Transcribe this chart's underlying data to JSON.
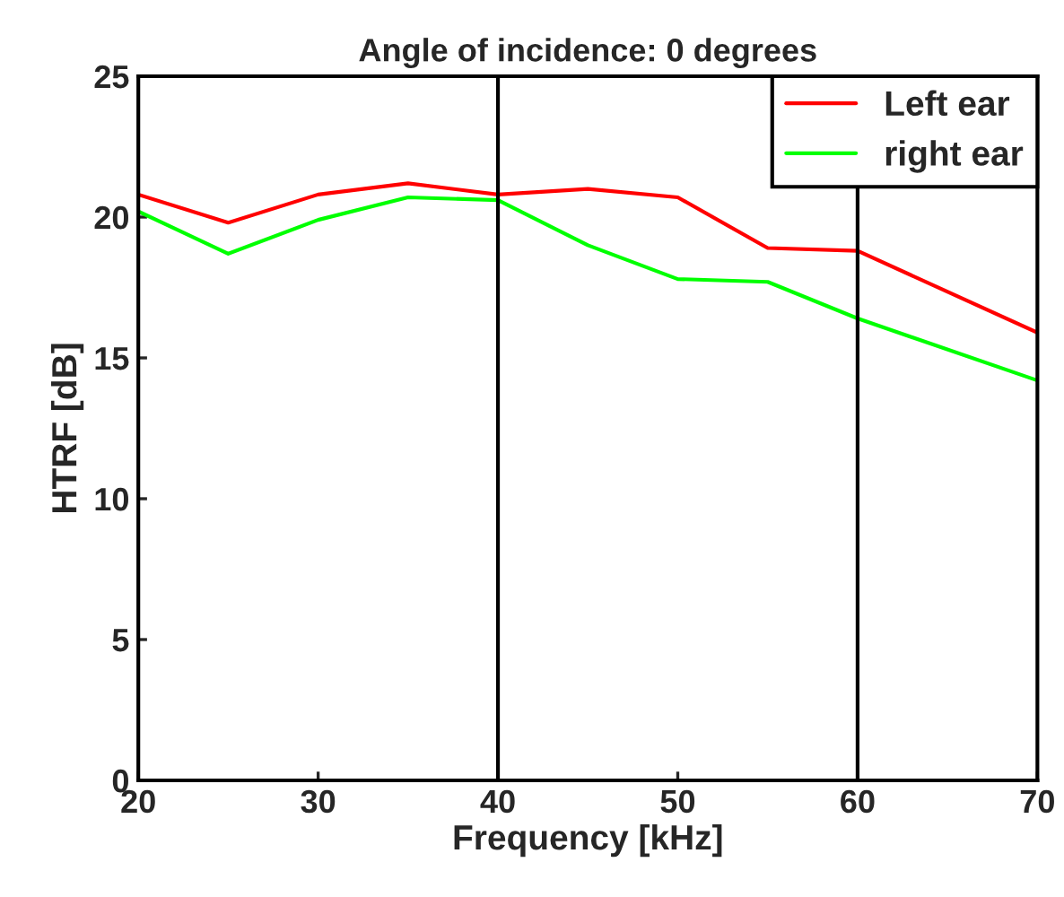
{
  "chart_data": {
    "type": "line",
    "title": "Angle of incidence: 0 degrees",
    "xlabel": "Frequency [kHz]",
    "ylabel": "HTRF [dB]",
    "x": [
      20,
      25,
      30,
      35,
      40,
      45,
      50,
      55,
      60,
      70
    ],
    "series": [
      {
        "name": "Left ear",
        "color": "#ff0000",
        "values": [
          20.8,
          19.8,
          20.8,
          21.2,
          20.8,
          21.0,
          20.7,
          18.9,
          18.8,
          15.9
        ]
      },
      {
        "name": "right ear",
        "color": "#00ff00",
        "values": [
          20.2,
          18.7,
          19.9,
          20.7,
          20.6,
          19.0,
          17.8,
          17.7,
          16.4,
          14.2
        ]
      }
    ],
    "xlim": [
      20,
      70
    ],
    "xticks": [
      20,
      30,
      40,
      50,
      60,
      70
    ],
    "ylim": [
      0,
      25
    ],
    "yticks": [
      0,
      5,
      10,
      15,
      20,
      25
    ],
    "ref_lines": [
      {
        "axis": "x",
        "value": 40,
        "color": "#000000"
      },
      {
        "axis": "x",
        "value": 60,
        "color": "#000000"
      }
    ],
    "grid": false,
    "legend": "top right",
    "line_style": "solid"
  }
}
